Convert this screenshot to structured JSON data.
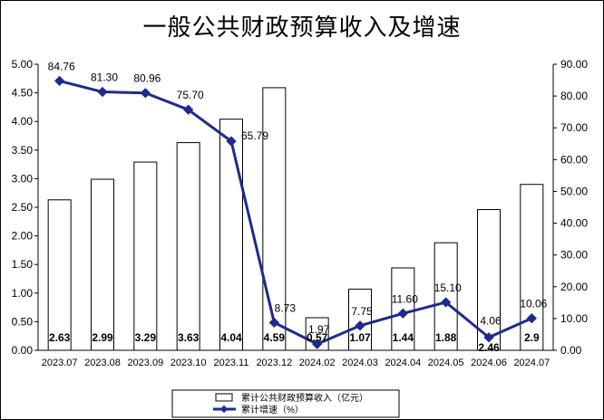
{
  "chart_data": {
    "type": "bar",
    "title": "一般公共财政预算收入及增速",
    "categories": [
      "2023.07",
      "2023.08",
      "2023.09",
      "2023.10",
      "2023.11",
      "2023.12",
      "2024.02",
      "2024.03",
      "2024.04",
      "2024.05",
      "2024.06",
      "2024.07"
    ],
    "series": [
      {
        "name": "累计公共财政预算收入（亿元）",
        "type": "bar",
        "axis": "left",
        "values": [
          2.63,
          2.99,
          3.29,
          3.63,
          4.04,
          4.59,
          0.57,
          1.07,
          1.44,
          1.88,
          2.46,
          2.9
        ],
        "labels": [
          "2.63",
          "2.99",
          "3.29",
          "3.63",
          "4.04",
          "4.59",
          "0.57",
          "1.07",
          "1.44",
          "1.88",
          "2.46",
          "2.9"
        ],
        "color": "#ffffff"
      },
      {
        "name": "累计增速（%）",
        "type": "line",
        "axis": "right",
        "values": [
          84.76,
          81.3,
          80.96,
          75.7,
          65.79,
          8.73,
          1.97,
          7.75,
          11.6,
          15.1,
          4.06,
          10.06
        ],
        "labels": [
          "84.76",
          "81.30",
          "80.96",
          "75.70",
          "65.79",
          "8.73",
          "1.97",
          "7.75",
          "11.60",
          "15.10",
          "4.06",
          "10.06"
        ],
        "color": "#1f2a8c"
      }
    ],
    "y_left": {
      "min": 0,
      "max": 5,
      "ticks": [
        "0.00",
        "0.50",
        "1.00",
        "1.50",
        "2.00",
        "2.50",
        "3.00",
        "3.50",
        "4.00",
        "4.50",
        "5.00"
      ]
    },
    "y_right": {
      "min": 0,
      "max": 90,
      "ticks": [
        "0.00",
        "10.00",
        "20.00",
        "30.00",
        "40.00",
        "50.00",
        "60.00",
        "70.00",
        "80.00",
        "90.00"
      ]
    },
    "grid": false,
    "legend_position": "bottom"
  }
}
